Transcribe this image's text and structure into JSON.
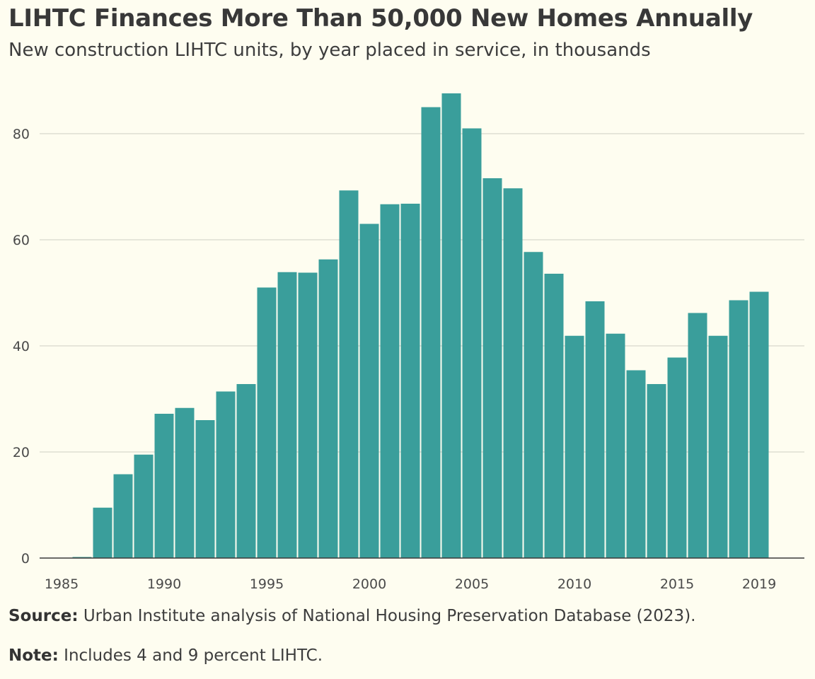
{
  "header": {
    "title": "LIHTC Finances More Than 50,000 New Homes Annually",
    "subtitle": "New construction LIHTC units, by year placed in service, in thousands"
  },
  "footer": {
    "source_label": "Source:",
    "source_text": "Urban Institute analysis of National Housing Preservation Database (2023).",
    "note_label": "Note:",
    "note_text": "Includes 4 and 9 percent LIHTC."
  },
  "chart_data": {
    "type": "bar",
    "title": "LIHTC Finances More Than 50,000 New Homes Annually",
    "subtitle": "New construction LIHTC units, by year placed in service, in thousands",
    "xlabel": "",
    "ylabel": "",
    "bar_color": "#3a9e9b",
    "ylim": [
      0,
      90
    ],
    "yticks": [
      0,
      20,
      40,
      60,
      80
    ],
    "xtick_labels": [
      "1985",
      "1990",
      "1995",
      "2000",
      "2005",
      "2010",
      "2015",
      "2019"
    ],
    "grid": true,
    "categories": [
      1985,
      1986,
      1987,
      1988,
      1989,
      1990,
      1991,
      1992,
      1993,
      1994,
      1995,
      1996,
      1997,
      1998,
      1999,
      2000,
      2001,
      2002,
      2003,
      2004,
      2005,
      2006,
      2007,
      2008,
      2009,
      2010,
      2011,
      2012,
      2013,
      2014,
      2015,
      2016,
      2017,
      2018,
      2019
    ],
    "values": [
      0,
      0.2,
      9.5,
      15.8,
      19.5,
      27.2,
      28.3,
      26.0,
      31.4,
      32.8,
      51.0,
      53.9,
      53.8,
      56.3,
      69.3,
      63.0,
      66.7,
      66.8,
      85.0,
      87.6,
      81.0,
      71.6,
      69.7,
      57.7,
      53.6,
      41.9,
      48.4,
      42.3,
      35.4,
      32.8,
      37.8,
      46.2,
      41.9,
      48.6,
      50.2
    ]
  }
}
